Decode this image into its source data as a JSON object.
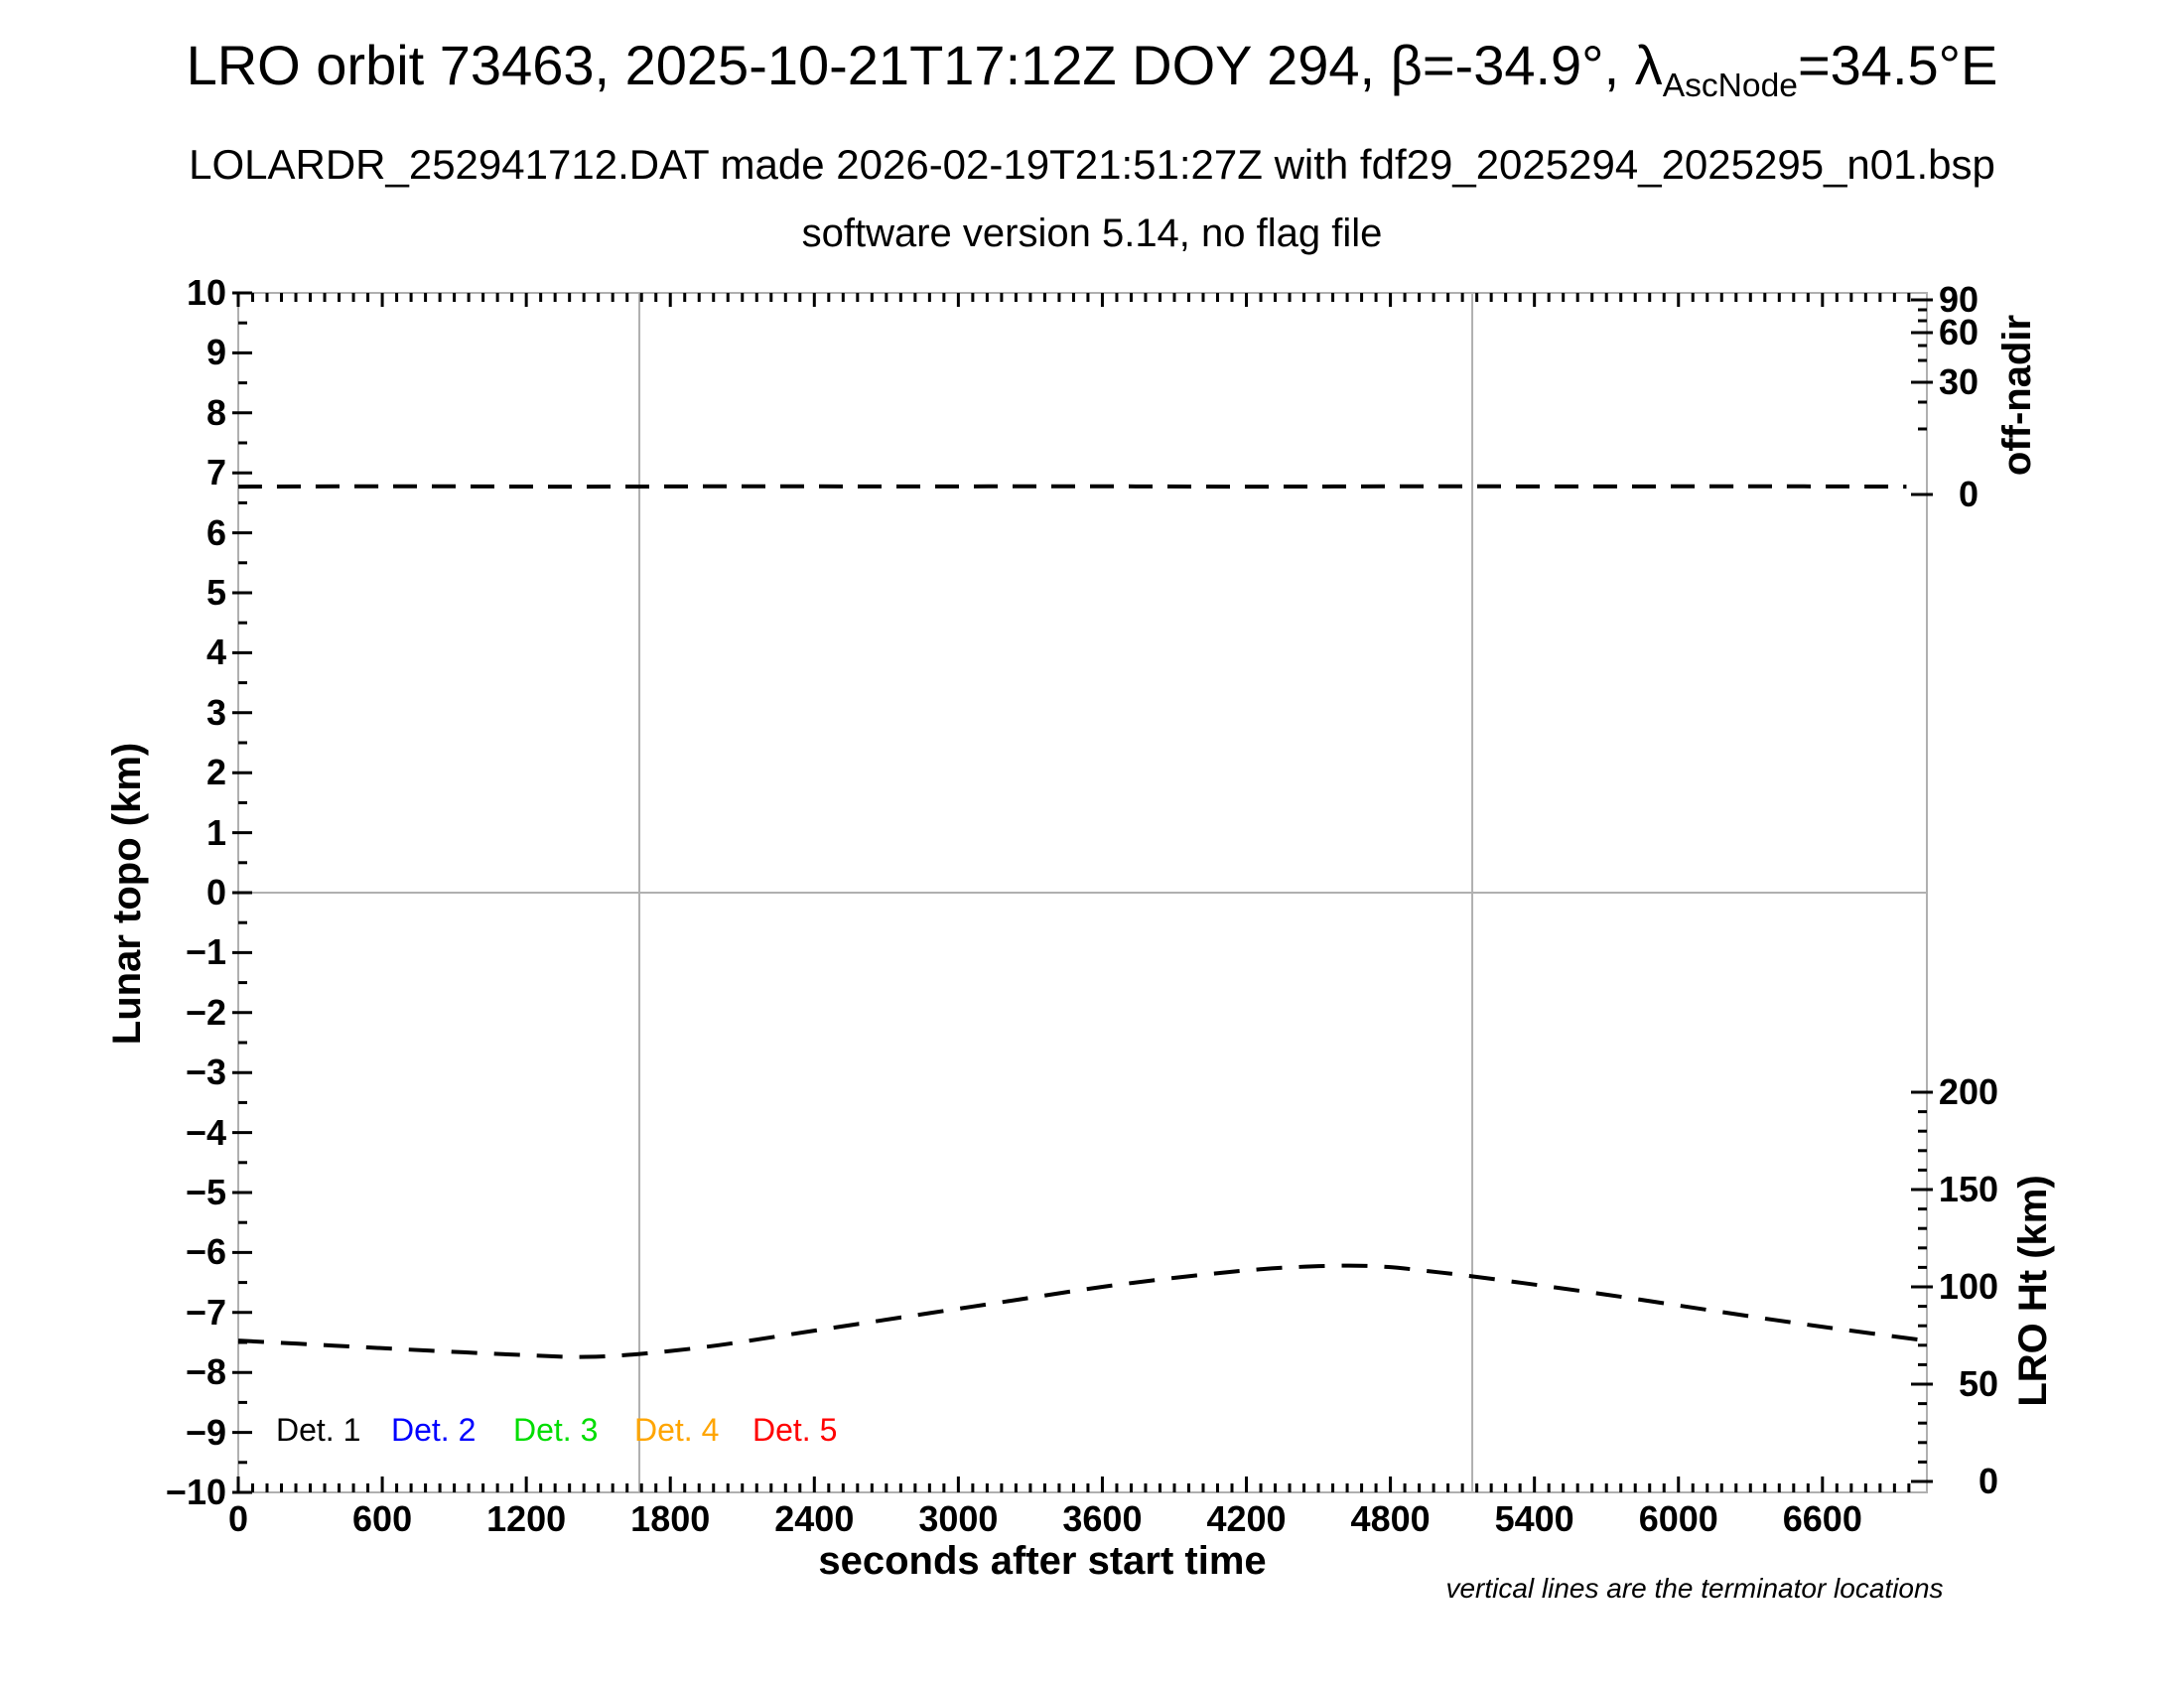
{
  "header": {
    "title_prefix": "LRO orbit 73463, 2025-10-21T17:12Z DOY 294, β=-34.9°, λ",
    "title_subscript": "AscNode",
    "title_suffix": "=34.5°E",
    "subtitle": "LOLARDR_252941712.DAT made 2026-02-19T21:51:27Z with fdf29_2025294_2025295_n01.bsp",
    "subtitle2": "software version 5.14, no flag file"
  },
  "chart_data": {
    "type": "line",
    "xlabel": "seconds after start time",
    "ylabel_left": "Lunar topo (km)",
    "ylabel_right_top": "off-nadir",
    "ylabel_right_bottom": "LRO Ht (km)",
    "footnote": "vertical lines are the terminator locations",
    "x_axis": {
      "min": 0,
      "max": 7035,
      "major": 600,
      "minor": 60,
      "tick_labels": [
        "0",
        "600",
        "1200",
        "1800",
        "2400",
        "3000",
        "3600",
        "4200",
        "4800",
        "5400",
        "6000",
        "6600"
      ]
    },
    "topo_axis": {
      "min": -10,
      "max": 10,
      "major": 1,
      "minor": 0.5,
      "tick_labels": [
        "10",
        "9",
        "8",
        "7",
        "6",
        "5",
        "4",
        "3",
        "2",
        "1",
        "0",
        "−1",
        "−2",
        "−3",
        "−4",
        "−5",
        "−6",
        "−7",
        "−8",
        "−9",
        "−10"
      ]
    },
    "off_nadir_axis": {
      "tick_labels": [
        "90",
        "60",
        "30",
        "0"
      ],
      "tick_values": [
        90,
        60,
        30,
        0
      ]
    },
    "lro_ht_axis": {
      "tick_labels": [
        "200",
        "150",
        "100",
        "50",
        "0"
      ],
      "tick_values": [
        200,
        150,
        100,
        50,
        0
      ],
      "minor": 10
    },
    "terminator_times_s": [
      1671,
      5141
    ],
    "series": [
      {
        "name": "off-nadir angle",
        "axis": "off_nadir",
        "color": "#000000",
        "line_style": "dashed",
        "points": [
          [
            0,
            2.1
          ],
          [
            700,
            2.2
          ],
          [
            1400,
            2.1
          ],
          [
            2100,
            2.2
          ],
          [
            2800,
            2.15
          ],
          [
            3500,
            2.2
          ],
          [
            4200,
            2.1
          ],
          [
            4900,
            2.2
          ],
          [
            5600,
            2.15
          ],
          [
            6300,
            2.2
          ],
          [
            6950,
            2.1
          ]
        ]
      },
      {
        "name": "LRO height",
        "axis": "lro_ht",
        "color": "#000000",
        "line_style": "dashed",
        "points": [
          [
            0,
            72.4
          ],
          [
            400,
            69.8
          ],
          [
            800,
            67.2
          ],
          [
            1200,
            64.9
          ],
          [
            1450,
            64.0
          ],
          [
            1700,
            65.8
          ],
          [
            2000,
            70.0
          ],
          [
            2400,
            77.5
          ],
          [
            2800,
            85.0
          ],
          [
            3200,
            92.5
          ],
          [
            3600,
            100.0
          ],
          [
            4000,
            106.0
          ],
          [
            4350,
            109.8
          ],
          [
            4700,
            110.8
          ],
          [
            5000,
            107.5
          ],
          [
            5350,
            102.0
          ],
          [
            5700,
            96.0
          ],
          [
            6050,
            89.5
          ],
          [
            6400,
            83.0
          ],
          [
            6700,
            77.8
          ],
          [
            7035,
            72.3
          ]
        ]
      }
    ],
    "legend": {
      "items": [
        {
          "label": "Det. 1",
          "color": "#000000"
        },
        {
          "label": "Det. 2",
          "color": "#0000ff"
        },
        {
          "label": "Det. 3",
          "color": "#00dd00"
        },
        {
          "label": "Det. 4",
          "color": "#ffa500"
        },
        {
          "label": "Det. 5",
          "color": "#ff0000"
        }
      ]
    },
    "colors": {
      "frame": "#b0b0b0",
      "terminator_line": "#b0b0b0",
      "zero_line": "#b0b0b0",
      "tick": "#000000",
      "curve": "#000000"
    }
  }
}
